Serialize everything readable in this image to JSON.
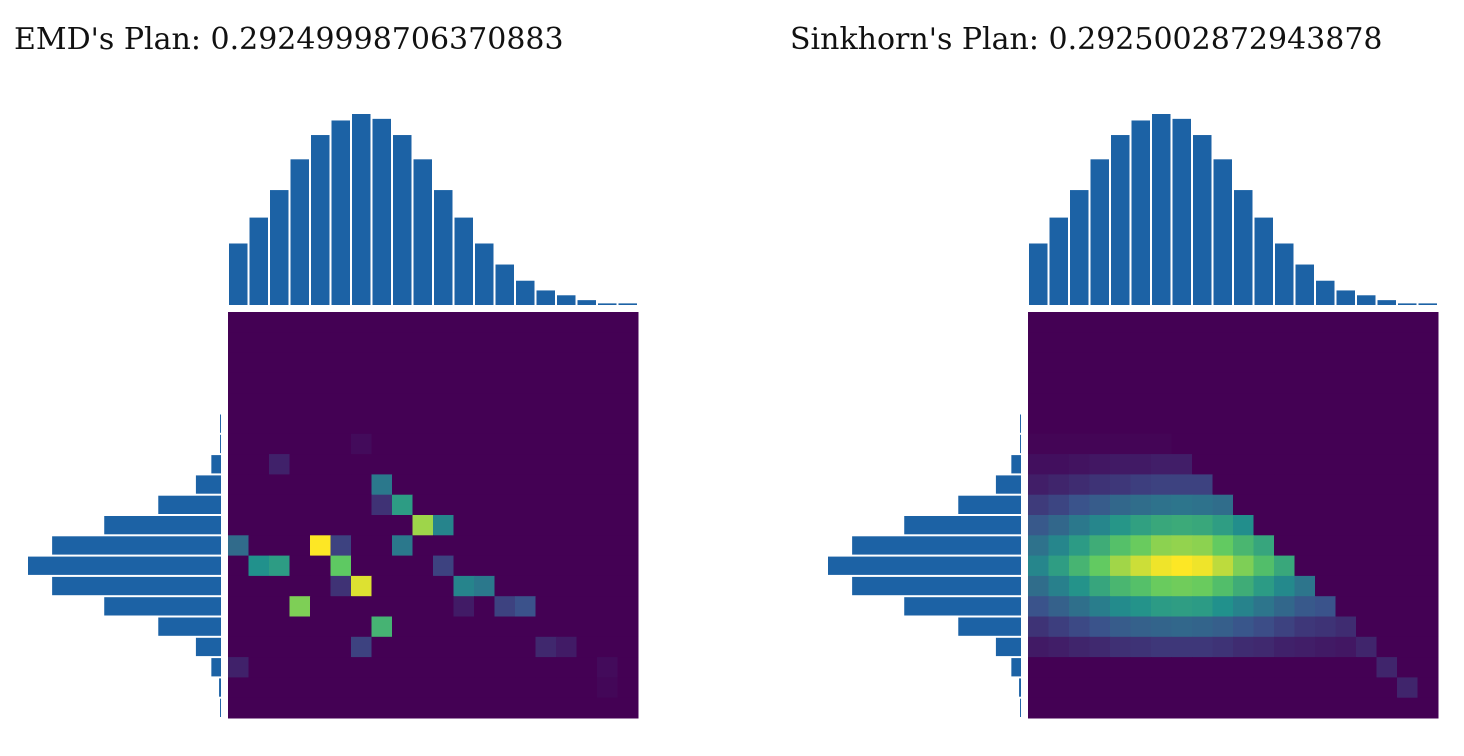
{
  "chart_data": [
    {
      "type": "heatmap",
      "title": "EMD's Plan: 0.29249998706370883",
      "colormap": "viridis",
      "marginal_color": "#1c62a5",
      "top_marginal": [
        0.038,
        0.054,
        0.071,
        0.09,
        0.105,
        0.114,
        0.118,
        0.115,
        0.105,
        0.09,
        0.071,
        0.054,
        0.038,
        0.025,
        0.015,
        0.009,
        0.006,
        0.003,
        0.001,
        0.001
      ],
      "left_marginal": [
        0,
        0,
        0,
        0,
        0,
        0.001,
        0.001,
        0.01,
        0.026,
        0.065,
        0.121,
        0.175,
        0.2,
        0.175,
        0.121,
        0.065,
        0.026,
        0.01,
        0.002,
        0.001
      ],
      "matrix": [
        [
          0,
          0,
          0,
          0,
          0,
          0,
          0,
          0,
          0,
          0,
          0,
          0,
          0,
          0,
          0,
          0,
          0,
          0,
          0,
          0
        ],
        [
          0,
          0,
          0,
          0,
          0,
          0,
          0,
          0,
          0,
          0,
          0,
          0,
          0,
          0,
          0,
          0,
          0,
          0,
          0,
          0
        ],
        [
          0,
          0,
          0,
          0,
          0,
          0,
          0,
          0,
          0,
          0,
          0,
          0,
          0,
          0,
          0,
          0,
          0,
          0,
          0,
          0
        ],
        [
          0,
          0,
          0,
          0,
          0,
          0,
          0,
          0,
          0,
          0,
          0,
          0,
          0,
          0,
          0,
          0,
          0,
          0,
          0,
          0
        ],
        [
          0,
          0,
          0,
          0,
          0,
          0,
          0,
          0,
          0,
          0,
          0,
          0,
          0,
          0,
          0,
          0,
          0,
          0,
          0,
          0
        ],
        [
          0,
          0,
          0,
          0,
          0,
          0,
          0,
          0,
          0,
          0,
          0,
          0,
          0,
          0,
          0,
          0,
          0,
          0,
          0,
          0
        ],
        [
          0,
          0,
          0,
          0,
          0,
          0,
          0.03,
          0,
          0,
          0,
          0,
          0,
          0,
          0,
          0,
          0,
          0,
          0,
          0,
          0
        ],
        [
          0,
          0,
          0.1,
          0,
          0,
          0,
          0,
          0,
          0,
          0,
          0,
          0,
          0,
          0,
          0,
          0,
          0,
          0,
          0,
          0
        ],
        [
          0,
          0,
          0,
          0,
          0,
          0,
          0,
          0.4,
          0,
          0,
          0,
          0,
          0,
          0,
          0,
          0,
          0,
          0,
          0,
          0
        ],
        [
          0,
          0,
          0,
          0,
          0,
          0,
          0,
          0.15,
          0.55,
          0,
          0,
          0,
          0,
          0,
          0,
          0,
          0,
          0,
          0,
          0
        ],
        [
          0,
          0,
          0,
          0,
          0,
          0,
          0,
          0,
          0,
          0.85,
          0.45,
          0,
          0,
          0,
          0,
          0,
          0,
          0,
          0,
          0
        ],
        [
          0.35,
          0,
          0,
          0,
          1,
          0.2,
          0,
          0,
          0.4,
          0,
          0,
          0,
          0,
          0,
          0,
          0,
          0,
          0,
          0,
          0
        ],
        [
          0,
          0.5,
          0.55,
          0,
          0,
          0.75,
          0,
          0,
          0,
          0,
          0.2,
          0,
          0,
          0,
          0,
          0,
          0,
          0,
          0,
          0
        ],
        [
          0,
          0,
          0,
          0,
          0,
          0.15,
          0.95,
          0,
          0,
          0,
          0,
          0.45,
          0.4,
          0,
          0,
          0,
          0,
          0,
          0,
          0
        ],
        [
          0,
          0,
          0,
          0.8,
          0,
          0,
          0,
          0,
          0,
          0,
          0,
          0.08,
          0,
          0.2,
          0.25,
          0,
          0,
          0,
          0,
          0
        ],
        [
          0,
          0,
          0,
          0,
          0,
          0,
          0,
          0.65,
          0,
          0,
          0,
          0,
          0,
          0,
          0,
          0,
          0,
          0,
          0,
          0
        ],
        [
          0,
          0,
          0,
          0,
          0,
          0,
          0.2,
          0,
          0,
          0,
          0,
          0,
          0,
          0,
          0,
          0.12,
          0.08,
          0,
          0,
          0
        ],
        [
          0.1,
          0,
          0,
          0,
          0,
          0,
          0,
          0,
          0,
          0,
          0,
          0,
          0,
          0,
          0,
          0,
          0,
          0,
          0.03,
          0
        ],
        [
          0,
          0,
          0,
          0,
          0,
          0,
          0,
          0,
          0,
          0,
          0,
          0,
          0,
          0,
          0,
          0,
          0,
          0,
          0.02,
          0
        ],
        [
          0,
          0,
          0,
          0,
          0,
          0,
          0,
          0,
          0,
          0,
          0,
          0,
          0,
          0,
          0,
          0,
          0,
          0,
          0,
          0
        ]
      ]
    },
    {
      "type": "heatmap",
      "title": "Sinkhorn's Plan: 0.2925002872943878",
      "colormap": "viridis",
      "marginal_color": "#1c62a5",
      "top_marginal": [
        0.038,
        0.054,
        0.071,
        0.09,
        0.105,
        0.114,
        0.118,
        0.115,
        0.105,
        0.09,
        0.071,
        0.054,
        0.038,
        0.025,
        0.015,
        0.009,
        0.006,
        0.003,
        0.001,
        0.001
      ],
      "left_marginal": [
        0,
        0,
        0,
        0,
        0,
        0.001,
        0.001,
        0.01,
        0.026,
        0.065,
        0.121,
        0.175,
        0.2,
        0.175,
        0.121,
        0.065,
        0.026,
        0.01,
        0.002,
        0.001
      ],
      "matrix": [
        [
          0,
          0,
          0,
          0,
          0,
          0,
          0,
          0,
          0,
          0,
          0,
          0,
          0,
          0,
          0,
          0,
          0,
          0,
          0,
          0
        ],
        [
          0,
          0,
          0,
          0,
          0,
          0,
          0,
          0,
          0,
          0,
          0,
          0,
          0,
          0,
          0,
          0,
          0,
          0,
          0,
          0
        ],
        [
          0,
          0,
          0,
          0,
          0,
          0,
          0,
          0,
          0,
          0,
          0,
          0,
          0,
          0,
          0,
          0,
          0,
          0,
          0,
          0
        ],
        [
          0,
          0,
          0,
          0,
          0,
          0,
          0,
          0,
          0,
          0,
          0,
          0,
          0,
          0,
          0,
          0,
          0,
          0,
          0,
          0
        ],
        [
          0,
          0,
          0,
          0,
          0,
          0,
          0,
          0,
          0,
          0,
          0,
          0,
          0,
          0,
          0,
          0,
          0,
          0,
          0,
          0
        ],
        [
          0,
          0,
          0,
          0,
          0,
          0,
          0,
          0,
          0,
          0,
          0,
          0,
          0,
          0,
          0,
          0,
          0,
          0,
          0,
          0
        ],
        [
          0.01,
          0.01,
          0.01,
          0.01,
          0.01,
          0.01,
          0.01,
          0,
          0,
          0,
          0,
          0,
          0,
          0,
          0,
          0,
          0,
          0,
          0,
          0
        ],
        [
          0.04,
          0.04,
          0.05,
          0.06,
          0.07,
          0.07,
          0.08,
          0.08,
          0,
          0,
          0,
          0,
          0,
          0,
          0,
          0,
          0,
          0,
          0,
          0
        ],
        [
          0.08,
          0.1,
          0.12,
          0.14,
          0.15,
          0.17,
          0.18,
          0.18,
          0.18,
          0,
          0,
          0,
          0,
          0,
          0,
          0,
          0,
          0,
          0,
          0
        ],
        [
          0.16,
          0.19,
          0.23,
          0.26,
          0.3,
          0.32,
          0.34,
          0.35,
          0.34,
          0.32,
          0,
          0,
          0,
          0,
          0,
          0,
          0,
          0,
          0,
          0
        ],
        [
          0.25,
          0.3,
          0.36,
          0.41,
          0.47,
          0.51,
          0.54,
          0.55,
          0.54,
          0.5,
          0.44,
          0,
          0,
          0,
          0,
          0,
          0,
          0,
          0,
          0
        ],
        [
          0.34,
          0.41,
          0.49,
          0.56,
          0.64,
          0.69,
          0.74,
          0.75,
          0.74,
          0.68,
          0.6,
          0.53,
          0,
          0,
          0,
          0,
          0,
          0,
          0,
          0
        ],
        [
          0.41,
          0.5,
          0.59,
          0.68,
          0.77,
          0.83,
          0.88,
          0.9,
          0.88,
          0.81,
          0.72,
          0.63,
          0.54,
          0,
          0,
          0,
          0,
          0,
          0,
          0
        ],
        [
          0.32,
          0.39,
          0.46,
          0.53,
          0.6,
          0.64,
          0.69,
          0.7,
          0.69,
          0.63,
          0.56,
          0.49,
          0.42,
          0.35,
          0,
          0,
          0,
          0,
          0,
          0
        ],
        [
          0.23,
          0.28,
          0.33,
          0.38,
          0.43,
          0.46,
          0.49,
          0.5,
          0.49,
          0.45,
          0.4,
          0.35,
          0.3,
          0.25,
          0.23,
          0,
          0,
          0,
          0,
          0
        ],
        [
          0.14,
          0.17,
          0.2,
          0.23,
          0.26,
          0.28,
          0.29,
          0.3,
          0.29,
          0.27,
          0.24,
          0.21,
          0.18,
          0.15,
          0.14,
          0.12,
          0,
          0,
          0,
          0
        ],
        [
          0.07,
          0.08,
          0.1,
          0.11,
          0.13,
          0.14,
          0.15,
          0.15,
          0.15,
          0.14,
          0.12,
          0.11,
          0.09,
          0.08,
          0.07,
          0.06,
          0.1,
          0,
          0,
          0
        ],
        [
          0,
          0,
          0,
          0,
          0,
          0,
          0,
          0,
          0,
          0,
          0,
          0,
          0,
          0,
          0,
          0,
          0,
          0.1,
          0,
          0
        ],
        [
          0,
          0,
          0,
          0,
          0,
          0,
          0,
          0,
          0,
          0,
          0,
          0,
          0,
          0,
          0,
          0,
          0,
          0,
          0.1,
          0
        ],
        [
          0,
          0,
          0,
          0,
          0,
          0,
          0,
          0,
          0,
          0,
          0,
          0,
          0,
          0,
          0,
          0,
          0,
          0,
          0,
          0
        ]
      ]
    }
  ]
}
